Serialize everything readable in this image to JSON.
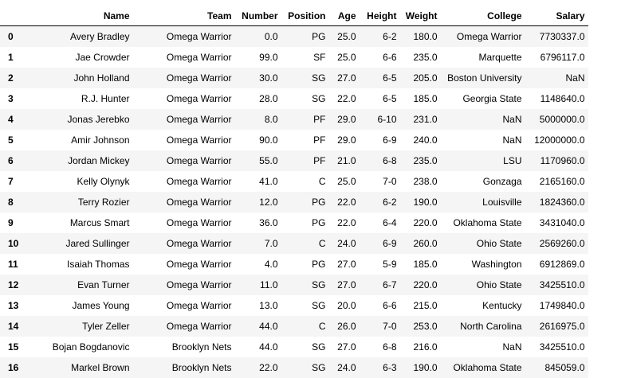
{
  "table": {
    "columns": [
      "",
      "Name",
      "Team",
      "Number",
      "Position",
      "Age",
      "Height",
      "Weight",
      "College",
      "Salary"
    ],
    "rows": [
      [
        "0",
        "Avery Bradley",
        "Omega Warrior",
        "0.0",
        "PG",
        "25.0",
        "6-2",
        "180.0",
        "Omega Warrior",
        "7730337.0"
      ],
      [
        "1",
        "Jae Crowder",
        "Omega Warrior",
        "99.0",
        "SF",
        "25.0",
        "6-6",
        "235.0",
        "Marquette",
        "6796117.0"
      ],
      [
        "2",
        "John Holland",
        "Omega Warrior",
        "30.0",
        "SG",
        "27.0",
        "6-5",
        "205.0",
        "Boston University",
        "NaN"
      ],
      [
        "3",
        "R.J. Hunter",
        "Omega Warrior",
        "28.0",
        "SG",
        "22.0",
        "6-5",
        "185.0",
        "Georgia State",
        "1148640.0"
      ],
      [
        "4",
        "Jonas Jerebko",
        "Omega Warrior",
        "8.0",
        "PF",
        "29.0",
        "6-10",
        "231.0",
        "NaN",
        "5000000.0"
      ],
      [
        "5",
        "Amir Johnson",
        "Omega Warrior",
        "90.0",
        "PF",
        "29.0",
        "6-9",
        "240.0",
        "NaN",
        "12000000.0"
      ],
      [
        "6",
        "Jordan Mickey",
        "Omega Warrior",
        "55.0",
        "PF",
        "21.0",
        "6-8",
        "235.0",
        "LSU",
        "1170960.0"
      ],
      [
        "7",
        "Kelly Olynyk",
        "Omega Warrior",
        "41.0",
        "C",
        "25.0",
        "7-0",
        "238.0",
        "Gonzaga",
        "2165160.0"
      ],
      [
        "8",
        "Terry Rozier",
        "Omega Warrior",
        "12.0",
        "PG",
        "22.0",
        "6-2",
        "190.0",
        "Louisville",
        "1824360.0"
      ],
      [
        "9",
        "Marcus Smart",
        "Omega Warrior",
        "36.0",
        "PG",
        "22.0",
        "6-4",
        "220.0",
        "Oklahoma State",
        "3431040.0"
      ],
      [
        "10",
        "Jared Sullinger",
        "Omega Warrior",
        "7.0",
        "C",
        "24.0",
        "6-9",
        "260.0",
        "Ohio State",
        "2569260.0"
      ],
      [
        "11",
        "Isaiah Thomas",
        "Omega Warrior",
        "4.0",
        "PG",
        "27.0",
        "5-9",
        "185.0",
        "Washington",
        "6912869.0"
      ],
      [
        "12",
        "Evan Turner",
        "Omega Warrior",
        "11.0",
        "SG",
        "27.0",
        "6-7",
        "220.0",
        "Ohio State",
        "3425510.0"
      ],
      [
        "13",
        "James Young",
        "Omega Warrior",
        "13.0",
        "SG",
        "20.0",
        "6-6",
        "215.0",
        "Kentucky",
        "1749840.0"
      ],
      [
        "14",
        "Tyler Zeller",
        "Omega Warrior",
        "44.0",
        "C",
        "26.0",
        "7-0",
        "253.0",
        "North Carolina",
        "2616975.0"
      ],
      [
        "15",
        "Bojan Bogdanovic",
        "Brooklyn Nets",
        "44.0",
        "SG",
        "27.0",
        "6-8",
        "216.0",
        "NaN",
        "3425510.0"
      ],
      [
        "16",
        "Markel Brown",
        "Brooklyn Nets",
        "22.0",
        "SG",
        "24.0",
        "6-3",
        "190.0",
        "Oklahoma State",
        "845059.0"
      ]
    ]
  },
  "colors": {
    "row_stripe": "#f5f5f5",
    "header_border": "#000000"
  }
}
